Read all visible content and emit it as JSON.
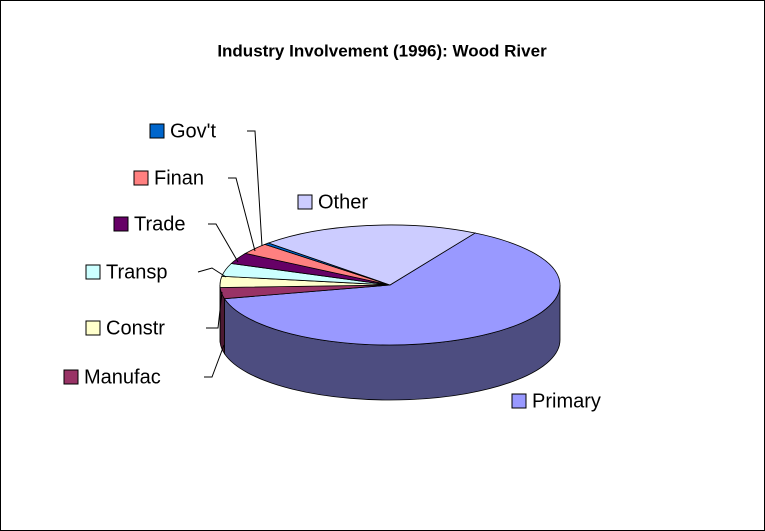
{
  "chart_data": {
    "type": "pie3d",
    "title": "Industry Involvement (1996): Wood River",
    "categories": [
      "Primary",
      "Manufac",
      "Constr",
      "Transp",
      "Trade",
      "Finan",
      "Gov't",
      "Other"
    ],
    "values": [
      63,
      3,
      3,
      3.5,
      3,
      3,
      0.5,
      21
    ],
    "colors": [
      "#9999ff",
      "#993366",
      "#ffffcc",
      "#ccffff",
      "#660066",
      "#ff8080",
      "#0066cc",
      "#ccccff"
    ]
  }
}
